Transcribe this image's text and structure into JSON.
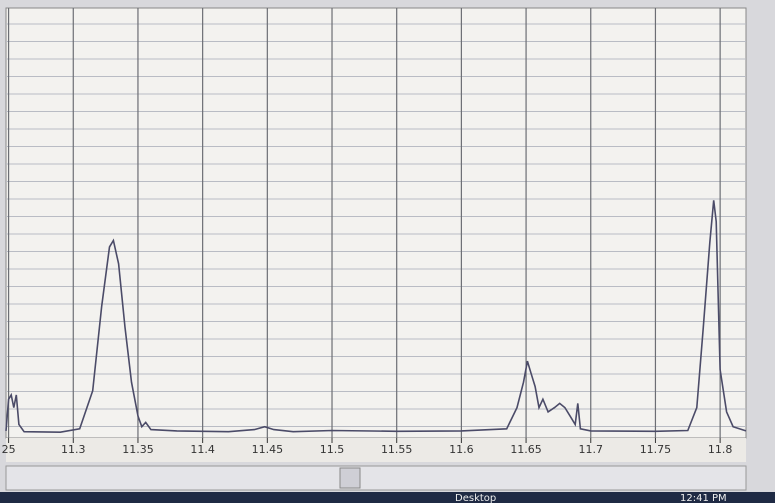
{
  "chart_data": {
    "type": "line",
    "x": [
      11.248,
      11.25,
      11.252,
      11.254,
      11.256,
      11.258,
      11.262,
      11.29,
      11.305,
      11.315,
      11.322,
      11.328,
      11.331,
      11.335,
      11.34,
      11.345,
      11.35,
      11.353,
      11.356,
      11.36,
      11.38,
      11.42,
      11.44,
      11.448,
      11.455,
      11.47,
      11.5,
      11.55,
      11.6,
      11.635,
      11.643,
      11.648,
      11.651,
      11.654,
      11.657,
      11.66,
      11.663,
      11.667,
      11.672,
      11.676,
      11.68,
      11.684,
      11.688,
      11.69,
      11.692,
      11.7,
      11.75,
      11.775,
      11.782,
      11.787,
      11.792,
      11.795,
      11.797,
      11.8,
      11.805,
      11.81,
      11.82
    ],
    "values": [
      0.5,
      8,
      9,
      6,
      9,
      2,
      0.3,
      0.2,
      1,
      10,
      30,
      44,
      45.5,
      40,
      25,
      12,
      4,
      1.5,
      2.5,
      0.8,
      0.5,
      0.3,
      0.8,
      1.5,
      0.8,
      0.3,
      0.6,
      0.4,
      0.5,
      1,
      6,
      12,
      17,
      14,
      11,
      6,
      8,
      5,
      6,
      7,
      6,
      4,
      2,
      7,
      1,
      0.5,
      0.4,
      0.6,
      6,
      25,
      45,
      55,
      50,
      15,
      5,
      1.5,
      0.5
    ],
    "color": "#4b4b68",
    "xlim": [
      11.248,
      11.82
    ],
    "xticks": [
      {
        "value": 11.25,
        "label": "25"
      },
      11.3,
      11.35,
      11.4,
      11.45,
      11.5,
      11.55,
      11.6,
      11.65,
      11.7,
      11.75,
      11.8
    ],
    "ylim": [
      0,
      100
    ],
    "grid": true
  },
  "taskbar": {
    "label": "Desktop",
    "time": "12:41 PM"
  }
}
